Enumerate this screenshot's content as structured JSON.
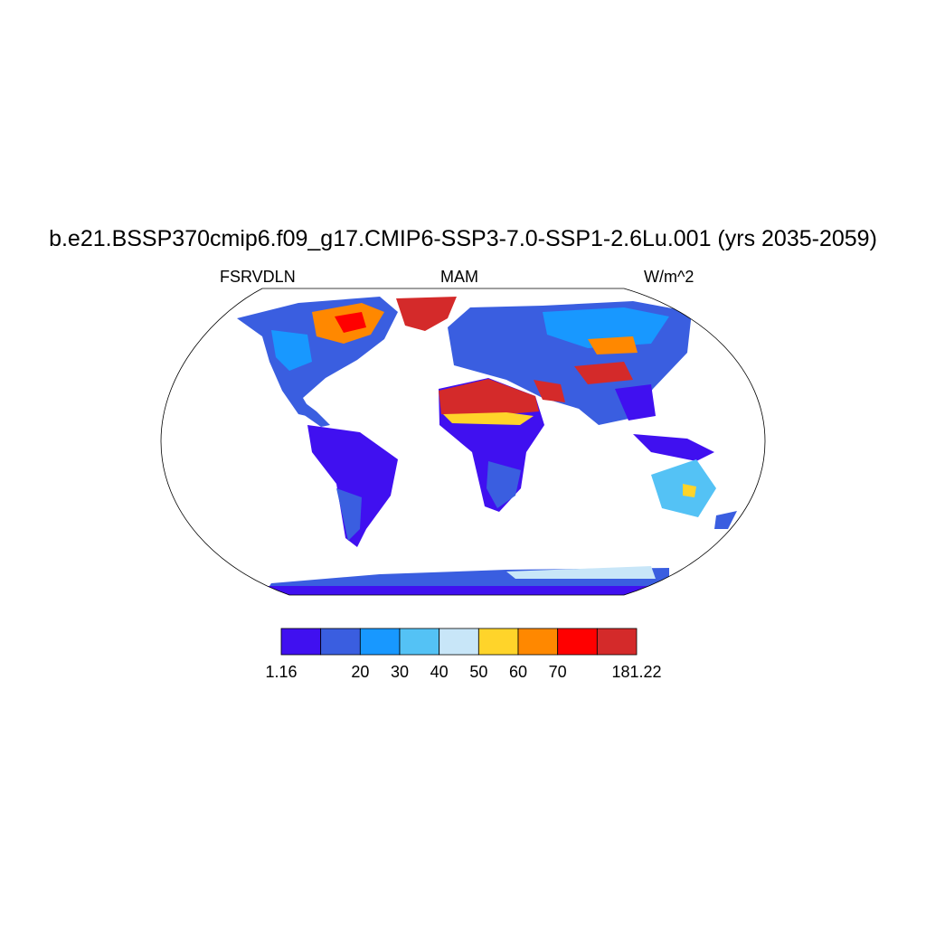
{
  "title": "b.e21.BSSP370cmip6.f09_g17.CMIP6-SSP3-7.0-SSP1-2.6Lu.001 (yrs 2035-2059)",
  "left_string": "FSRVDLN",
  "center_string": "MAM",
  "right_string": "W/m^2",
  "map": {
    "projection": "Robinson",
    "variable": "FSRVDLN",
    "season": "MAM"
  },
  "colorbar": {
    "colors": [
      "#4010f0",
      "#3a5ee0",
      "#1898ff",
      "#54c2f5",
      "#c8e6f8",
      "#ffd42a",
      "#ff8800",
      "#ff0000",
      "#d42a2a"
    ],
    "labels": [
      {
        "text": "1.16",
        "boundary": 0
      },
      {
        "text": "20",
        "boundary": 2
      },
      {
        "text": "30",
        "boundary": 3
      },
      {
        "text": "40",
        "boundary": 4
      },
      {
        "text": "50",
        "boundary": 5
      },
      {
        "text": "60",
        "boundary": 6
      },
      {
        "text": "70",
        "boundary": 7
      },
      {
        "text": "181.22",
        "boundary": 9
      }
    ]
  }
}
